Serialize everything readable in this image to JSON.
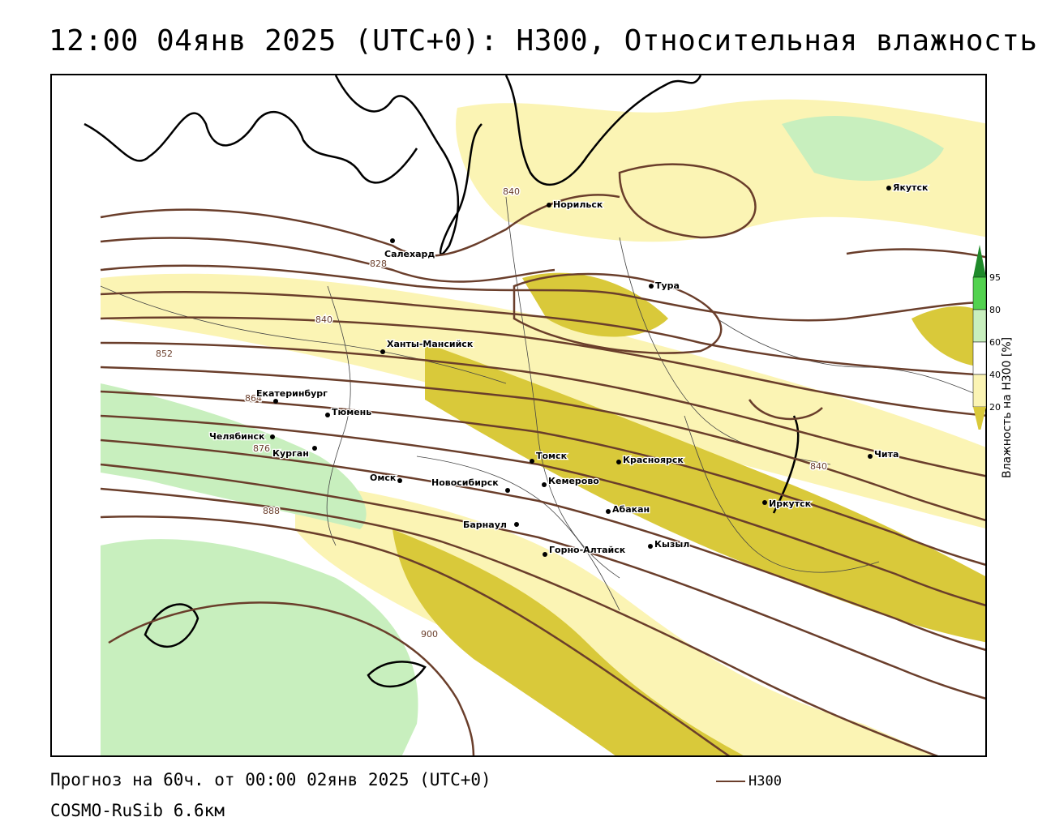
{
  "header": {
    "title": "12:00 04янв 2025 (UTC+0): H300, Относительная влажность"
  },
  "map": {
    "cities": [
      {
        "name": "Норильск"
      },
      {
        "name": "Якутск"
      },
      {
        "name": "Салехард"
      },
      {
        "name": "Тура"
      },
      {
        "name": "Ханты-Мансийск"
      },
      {
        "name": "Екатеринбург"
      },
      {
        "name": "Тюмень"
      },
      {
        "name": "Челябинск"
      },
      {
        "name": "Курган"
      },
      {
        "name": "Омск"
      },
      {
        "name": "Новосибирск"
      },
      {
        "name": "Томск"
      },
      {
        "name": "Кемерово"
      },
      {
        "name": "Красноярск"
      },
      {
        "name": "Абакан"
      },
      {
        "name": "Барнаул"
      },
      {
        "name": "Горно-Алтайск"
      },
      {
        "name": "Кызыл"
      },
      {
        "name": "Иркутск"
      },
      {
        "name": "Чита"
      }
    ],
    "contour_labels": [
      "840",
      "828",
      "840",
      "852",
      "864",
      "876",
      "888",
      "900",
      "840"
    ],
    "colors": {
      "contour": "#6a3e2b",
      "rh_20_40": "#fbf4b4",
      "rh_40_60": "#d9c93a",
      "rh_60_80": "#c8efbe",
      "rh_80_95": "#52d24f",
      "rh_95_plus": "#1f8a2a",
      "coastline": "#000000",
      "border": "#444444"
    }
  },
  "legend": {
    "title": "Влажность на H300 [%]",
    "ticks": [
      "95",
      "80",
      "60",
      "40",
      "20"
    ]
  },
  "footer": {
    "forecast_line": "Прогноз на 60ч. от 00:00 02янв 2025 (UTC+0)",
    "model_line": "COSMO-RuSib 6.6км",
    "key_label": "H300"
  }
}
